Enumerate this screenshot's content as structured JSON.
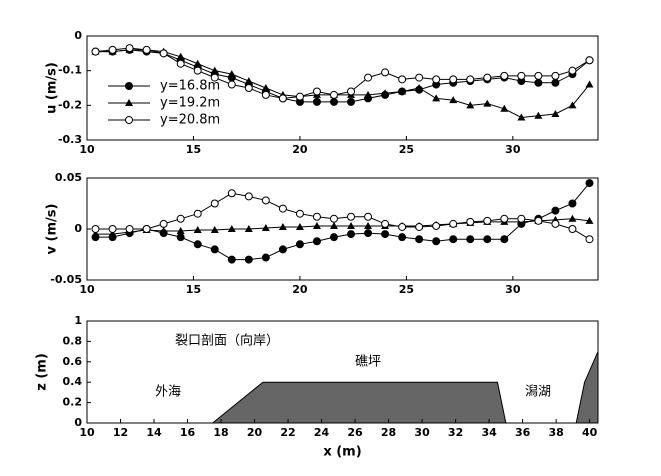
{
  "chart_data": [
    {
      "type": "line",
      "ylabel": "u (m/s)",
      "xlim": [
        10,
        34
      ],
      "ylim": [
        -0.3,
        0
      ],
      "xticks": [
        10,
        15,
        20,
        25,
        30
      ],
      "yticks": [
        -0.3,
        -0.2,
        -0.1,
        0
      ],
      "legend": "left",
      "x": [
        10.4,
        11.2,
        12.0,
        12.8,
        13.6,
        14.4,
        15.2,
        16.0,
        16.8,
        17.6,
        18.4,
        19.2,
        20.0,
        20.8,
        21.6,
        22.4,
        23.2,
        24.0,
        24.8,
        25.6,
        26.4,
        27.2,
        28.0,
        28.8,
        29.6,
        30.4,
        31.2,
        32.0,
        32.8,
        33.6
      ],
      "series": [
        {
          "name": "y=16.8m",
          "color": "#000000",
          "marker": "filled-circle",
          "values": [
            -0.045,
            -0.045,
            -0.04,
            -0.045,
            -0.05,
            -0.07,
            -0.09,
            -0.11,
            -0.12,
            -0.14,
            -0.16,
            -0.18,
            -0.19,
            -0.19,
            -0.19,
            -0.19,
            -0.18,
            -0.17,
            -0.16,
            -0.155,
            -0.14,
            -0.135,
            -0.13,
            -0.125,
            -0.12,
            -0.13,
            -0.135,
            -0.135,
            -0.11,
            -0.07
          ]
        },
        {
          "name": "y=19.2m",
          "color": "#000000",
          "marker": "triangle",
          "values": [
            -0.045,
            -0.045,
            -0.04,
            -0.04,
            -0.045,
            -0.06,
            -0.08,
            -0.1,
            -0.11,
            -0.13,
            -0.15,
            -0.17,
            -0.175,
            -0.17,
            -0.17,
            -0.17,
            -0.17,
            -0.165,
            -0.16,
            -0.15,
            -0.18,
            -0.185,
            -0.2,
            -0.195,
            -0.21,
            -0.235,
            -0.23,
            -0.225,
            -0.2,
            -0.14
          ]
        },
        {
          "name": "y=20.8m",
          "color": "#000000",
          "marker": "open-circle",
          "values": [
            -0.045,
            -0.04,
            -0.035,
            -0.04,
            -0.05,
            -0.08,
            -0.1,
            -0.12,
            -0.14,
            -0.15,
            -0.17,
            -0.18,
            -0.175,
            -0.16,
            -0.17,
            -0.16,
            -0.12,
            -0.105,
            -0.125,
            -0.12,
            -0.125,
            -0.125,
            -0.125,
            -0.12,
            -0.115,
            -0.115,
            -0.115,
            -0.115,
            -0.1,
            -0.07
          ]
        }
      ]
    },
    {
      "type": "line",
      "ylabel": "v (m/s)",
      "xlim": [
        10,
        34
      ],
      "ylim": [
        -0.05,
        0.05
      ],
      "xticks": [
        10,
        15,
        20,
        25,
        30
      ],
      "yticks": [
        -0.05,
        0,
        0.05
      ],
      "x": [
        10.4,
        11.2,
        12.0,
        12.8,
        13.6,
        14.4,
        15.2,
        16.0,
        16.8,
        17.6,
        18.4,
        19.2,
        20.0,
        20.8,
        21.6,
        22.4,
        23.2,
        24.0,
        24.8,
        25.6,
        26.4,
        27.2,
        28.0,
        28.8,
        29.6,
        30.4,
        31.2,
        32.0,
        32.8,
        33.6
      ],
      "series": [
        {
          "name": "y=16.8m",
          "color": "#000000",
          "marker": "filled-circle",
          "values": [
            -0.008,
            -0.008,
            -0.004,
            0,
            -0.004,
            -0.008,
            -0.015,
            -0.02,
            -0.03,
            -0.03,
            -0.028,
            -0.02,
            -0.015,
            -0.012,
            -0.008,
            -0.005,
            -0.004,
            -0.005,
            -0.008,
            -0.01,
            -0.012,
            -0.01,
            -0.01,
            -0.01,
            -0.01,
            0.005,
            0.01,
            0.018,
            0.025,
            0.045
          ]
        },
        {
          "name": "y=19.2m",
          "color": "#000000",
          "marker": "triangle",
          "values": [
            -0.005,
            -0.005,
            -0.003,
            -0.001,
            -0.002,
            -0.002,
            -0.001,
            -0.001,
            0,
            0,
            0.001,
            0.002,
            0.002,
            0.003,
            0.003,
            0.003,
            0.003,
            0.003,
            0.003,
            0.003,
            0.004,
            0.005,
            0.006,
            0.007,
            0.007,
            0.007,
            0.008,
            0.009,
            0.01,
            0.008
          ]
        },
        {
          "name": "y=20.8m",
          "color": "#000000",
          "marker": "open-circle",
          "values": [
            0,
            0,
            0,
            0,
            0.005,
            0.01,
            0.015,
            0.025,
            0.035,
            0.032,
            0.028,
            0.02,
            0.015,
            0.012,
            0.01,
            0.012,
            0.012,
            0.005,
            0.002,
            0.002,
            0.003,
            0.005,
            0.007,
            0.008,
            0.01,
            0.01,
            0.008,
            0.005,
            0,
            -0.01
          ]
        }
      ]
    },
    {
      "type": "area",
      "ylabel": "z (m)",
      "xlabel": "x (m)",
      "xlim": [
        10,
        40.5
      ],
      "ylim": [
        0,
        1
      ],
      "xticks": [
        10,
        12,
        14,
        16,
        18,
        20,
        22,
        24,
        26,
        28,
        30,
        32,
        34,
        36,
        38,
        40
      ],
      "yticks": [
        0,
        0.2,
        0.4,
        0.6,
        0.8,
        1
      ],
      "color": "#666666",
      "x": [
        10,
        17.5,
        20.5,
        34.5,
        35,
        39.2,
        39.7,
        40.5
      ],
      "values": [
        0,
        0,
        0.4,
        0.4,
        0,
        0,
        0.4,
        0.7
      ],
      "annotations": [
        "裂口剖面（向岸）",
        "外海",
        "礁坪",
        "潟湖"
      ]
    }
  ]
}
